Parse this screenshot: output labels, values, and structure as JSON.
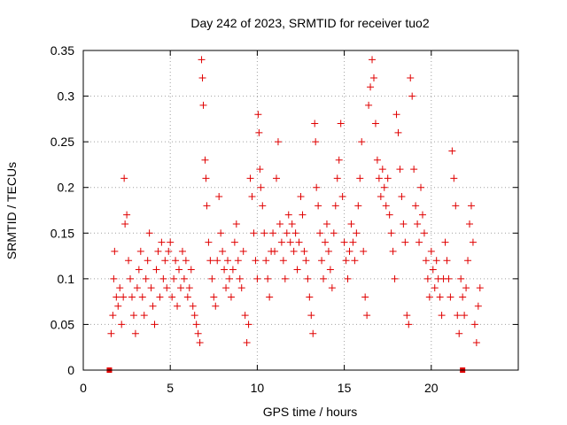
{
  "chart_data": {
    "type": "scatter",
    "title": "Day 242 of 2023, SRMTID for receiver tuo2",
    "xlabel": "GPS time / hours",
    "ylabel": "SRMTID / TECUs",
    "xlim": [
      0,
      25
    ],
    "ylim": [
      0,
      0.35
    ],
    "xticks": [
      0,
      5,
      10,
      15,
      20
    ],
    "xtick_labels": [
      "0",
      "5",
      "10",
      "15",
      "20"
    ],
    "yticks": [
      0,
      0.05,
      0.1,
      0.15,
      0.2,
      0.25,
      0.3,
      0.35
    ],
    "ytick_labels": [
      "0",
      "0.05",
      "0.1",
      "0.15",
      "0.2",
      "0.25",
      "0.3",
      "0.35"
    ],
    "grid": true,
    "marker": "+",
    "color": "#e00000",
    "zero_markers": [
      1.5,
      21.8
    ],
    "points": [
      [
        1.6,
        0.04
      ],
      [
        1.7,
        0.06
      ],
      [
        1.75,
        0.1
      ],
      [
        1.8,
        0.13
      ],
      [
        1.9,
        0.08
      ],
      [
        2.0,
        0.07
      ],
      [
        2.1,
        0.09
      ],
      [
        2.2,
        0.05
      ],
      [
        2.3,
        0.08
      ],
      [
        2.35,
        0.21
      ],
      [
        2.4,
        0.16
      ],
      [
        2.5,
        0.17
      ],
      [
        2.6,
        0.12
      ],
      [
        2.7,
        0.1
      ],
      [
        2.8,
        0.08
      ],
      [
        2.9,
        0.06
      ],
      [
        3.0,
        0.04
      ],
      [
        3.1,
        0.09
      ],
      [
        3.2,
        0.11
      ],
      [
        3.3,
        0.13
      ],
      [
        3.4,
        0.08
      ],
      [
        3.5,
        0.06
      ],
      [
        3.6,
        0.1
      ],
      [
        3.7,
        0.12
      ],
      [
        3.8,
        0.15
      ],
      [
        3.9,
        0.09
      ],
      [
        4.0,
        0.07
      ],
      [
        4.1,
        0.05
      ],
      [
        4.2,
        0.11
      ],
      [
        4.3,
        0.13
      ],
      [
        4.4,
        0.08
      ],
      [
        4.5,
        0.14
      ],
      [
        4.6,
        0.1
      ],
      [
        4.7,
        0.12
      ],
      [
        4.8,
        0.09
      ],
      [
        4.9,
        0.13
      ],
      [
        5.0,
        0.14
      ],
      [
        5.1,
        0.08
      ],
      [
        5.2,
        0.1
      ],
      [
        5.3,
        0.12
      ],
      [
        5.4,
        0.07
      ],
      [
        5.5,
        0.11
      ],
      [
        5.6,
        0.09
      ],
      [
        5.7,
        0.13
      ],
      [
        5.8,
        0.1
      ],
      [
        5.9,
        0.12
      ],
      [
        6.0,
        0.08
      ],
      [
        6.1,
        0.09
      ],
      [
        6.2,
        0.11
      ],
      [
        6.3,
        0.07
      ],
      [
        6.4,
        0.06
      ],
      [
        6.5,
        0.05
      ],
      [
        6.6,
        0.04
      ],
      [
        6.7,
        0.03
      ],
      [
        6.8,
        0.34
      ],
      [
        6.85,
        0.32
      ],
      [
        6.9,
        0.29
      ],
      [
        7.0,
        0.23
      ],
      [
        7.05,
        0.21
      ],
      [
        7.1,
        0.18
      ],
      [
        7.2,
        0.14
      ],
      [
        7.3,
        0.12
      ],
      [
        7.4,
        0.1
      ],
      [
        7.5,
        0.08
      ],
      [
        7.6,
        0.07
      ],
      [
        7.7,
        0.12
      ],
      [
        7.8,
        0.19
      ],
      [
        7.9,
        0.15
      ],
      [
        8.0,
        0.13
      ],
      [
        8.1,
        0.11
      ],
      [
        8.2,
        0.09
      ],
      [
        8.3,
        0.12
      ],
      [
        8.4,
        0.1
      ],
      [
        8.5,
        0.08
      ],
      [
        8.6,
        0.11
      ],
      [
        8.7,
        0.14
      ],
      [
        8.8,
        0.16
      ],
      [
        8.9,
        0.12
      ],
      [
        9.0,
        0.1
      ],
      [
        9.1,
        0.09
      ],
      [
        9.2,
        0.13
      ],
      [
        9.3,
        0.06
      ],
      [
        9.4,
        0.03
      ],
      [
        9.5,
        0.05
      ],
      [
        9.6,
        0.21
      ],
      [
        9.7,
        0.19
      ],
      [
        9.8,
        0.15
      ],
      [
        9.9,
        0.12
      ],
      [
        10.0,
        0.1
      ],
      [
        10.05,
        0.28
      ],
      [
        10.1,
        0.26
      ],
      [
        10.15,
        0.22
      ],
      [
        10.2,
        0.2
      ],
      [
        10.3,
        0.18
      ],
      [
        10.4,
        0.15
      ],
      [
        10.5,
        0.12
      ],
      [
        10.6,
        0.1
      ],
      [
        10.7,
        0.08
      ],
      [
        10.8,
        0.13
      ],
      [
        10.9,
        0.15
      ],
      [
        11.0,
        0.13
      ],
      [
        11.1,
        0.21
      ],
      [
        11.2,
        0.25
      ],
      [
        11.3,
        0.16
      ],
      [
        11.4,
        0.14
      ],
      [
        11.5,
        0.12
      ],
      [
        11.6,
        0.1
      ],
      [
        11.7,
        0.15
      ],
      [
        11.8,
        0.17
      ],
      [
        11.9,
        0.14
      ],
      [
        12.0,
        0.16
      ],
      [
        12.1,
        0.13
      ],
      [
        12.2,
        0.15
      ],
      [
        12.3,
        0.11
      ],
      [
        12.4,
        0.14
      ],
      [
        12.5,
        0.19
      ],
      [
        12.6,
        0.17
      ],
      [
        12.7,
        0.13
      ],
      [
        12.8,
        0.12
      ],
      [
        12.9,
        0.1
      ],
      [
        13.0,
        0.08
      ],
      [
        13.1,
        0.06
      ],
      [
        13.2,
        0.04
      ],
      [
        13.3,
        0.27
      ],
      [
        13.35,
        0.25
      ],
      [
        13.4,
        0.2
      ],
      [
        13.5,
        0.18
      ],
      [
        13.6,
        0.15
      ],
      [
        13.7,
        0.12
      ],
      [
        13.8,
        0.1
      ],
      [
        13.9,
        0.14
      ],
      [
        14.0,
        0.16
      ],
      [
        14.1,
        0.13
      ],
      [
        14.2,
        0.11
      ],
      [
        14.3,
        0.09
      ],
      [
        14.4,
        0.15
      ],
      [
        14.5,
        0.18
      ],
      [
        14.6,
        0.21
      ],
      [
        14.7,
        0.23
      ],
      [
        14.8,
        0.27
      ],
      [
        14.9,
        0.19
      ],
      [
        15.0,
        0.14
      ],
      [
        15.1,
        0.12
      ],
      [
        15.2,
        0.1
      ],
      [
        15.3,
        0.13
      ],
      [
        15.4,
        0.16
      ],
      [
        15.5,
        0.14
      ],
      [
        15.6,
        0.12
      ],
      [
        15.7,
        0.15
      ],
      [
        15.8,
        0.18
      ],
      [
        15.9,
        0.21
      ],
      [
        16.0,
        0.25
      ],
      [
        16.1,
        0.13
      ],
      [
        16.2,
        0.08
      ],
      [
        16.3,
        0.06
      ],
      [
        16.4,
        0.29
      ],
      [
        16.5,
        0.31
      ],
      [
        16.6,
        0.34
      ],
      [
        16.7,
        0.32
      ],
      [
        16.8,
        0.27
      ],
      [
        16.9,
        0.23
      ],
      [
        17.0,
        0.21
      ],
      [
        17.1,
        0.19
      ],
      [
        17.2,
        0.22
      ],
      [
        17.3,
        0.2
      ],
      [
        17.4,
        0.18
      ],
      [
        17.5,
        0.21
      ],
      [
        17.6,
        0.17
      ],
      [
        17.7,
        0.15
      ],
      [
        17.8,
        0.13
      ],
      [
        17.9,
        0.1
      ],
      [
        18.0,
        0.28
      ],
      [
        18.1,
        0.26
      ],
      [
        18.2,
        0.22
      ],
      [
        18.3,
        0.19
      ],
      [
        18.4,
        0.16
      ],
      [
        18.5,
        0.14
      ],
      [
        18.6,
        0.06
      ],
      [
        18.7,
        0.05
      ],
      [
        18.8,
        0.32
      ],
      [
        18.9,
        0.3
      ],
      [
        19.0,
        0.22
      ],
      [
        19.1,
        0.18
      ],
      [
        19.2,
        0.16
      ],
      [
        19.3,
        0.14
      ],
      [
        19.4,
        0.2
      ],
      [
        19.5,
        0.17
      ],
      [
        19.6,
        0.15
      ],
      [
        19.7,
        0.12
      ],
      [
        19.8,
        0.1
      ],
      [
        19.9,
        0.08
      ],
      [
        20.0,
        0.13
      ],
      [
        20.1,
        0.11
      ],
      [
        20.2,
        0.09
      ],
      [
        20.3,
        0.12
      ],
      [
        20.4,
        0.1
      ],
      [
        20.5,
        0.08
      ],
      [
        20.6,
        0.06
      ],
      [
        20.7,
        0.1
      ],
      [
        20.8,
        0.14
      ],
      [
        20.9,
        0.12
      ],
      [
        21.0,
        0.1
      ],
      [
        21.1,
        0.08
      ],
      [
        21.2,
        0.24
      ],
      [
        21.3,
        0.21
      ],
      [
        21.4,
        0.18
      ],
      [
        21.5,
        0.06
      ],
      [
        21.6,
        0.04
      ],
      [
        21.7,
        0.1
      ],
      [
        21.8,
        0.08
      ],
      [
        21.9,
        0.06
      ],
      [
        22.0,
        0.09
      ],
      [
        22.1,
        0.12
      ],
      [
        22.2,
        0.16
      ],
      [
        22.3,
        0.18
      ],
      [
        22.4,
        0.14
      ],
      [
        22.5,
        0.05
      ],
      [
        22.6,
        0.03
      ],
      [
        22.7,
        0.07
      ],
      [
        22.8,
        0.09
      ]
    ]
  }
}
